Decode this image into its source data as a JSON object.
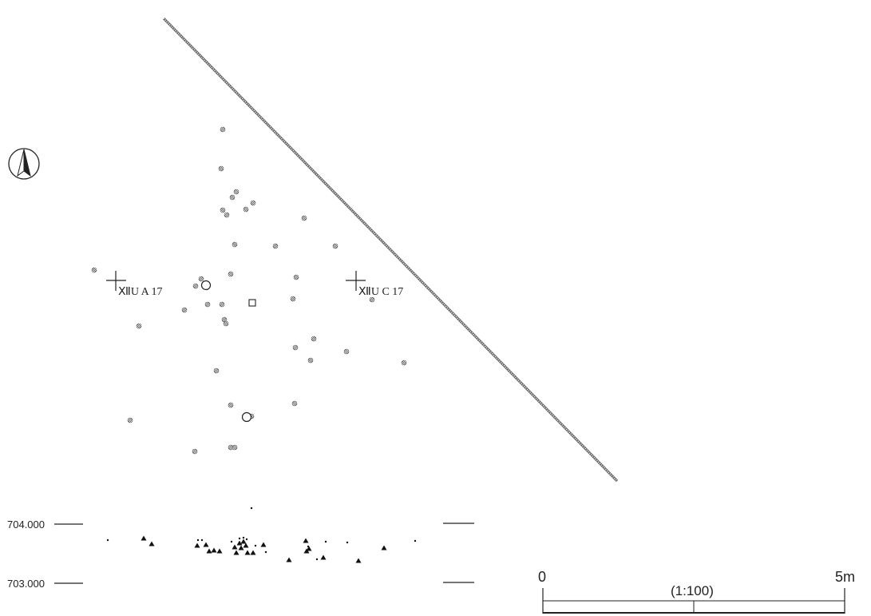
{
  "grid_points": [
    {
      "label": "ⅫU A 17"
    },
    {
      "label": "ⅫU C 17"
    }
  ],
  "elevations": [
    "704.000",
    "703.000"
  ],
  "scale": {
    "start_label": "0",
    "end_label": "5m",
    "ratio_label": "(1:100)"
  },
  "icons": {
    "north_arrow": "north-arrow-icon",
    "find": "stone-find-icon",
    "circle": "circle-feature-icon",
    "square": "square-feature-icon",
    "section_find": "triangle-find-icon"
  }
}
